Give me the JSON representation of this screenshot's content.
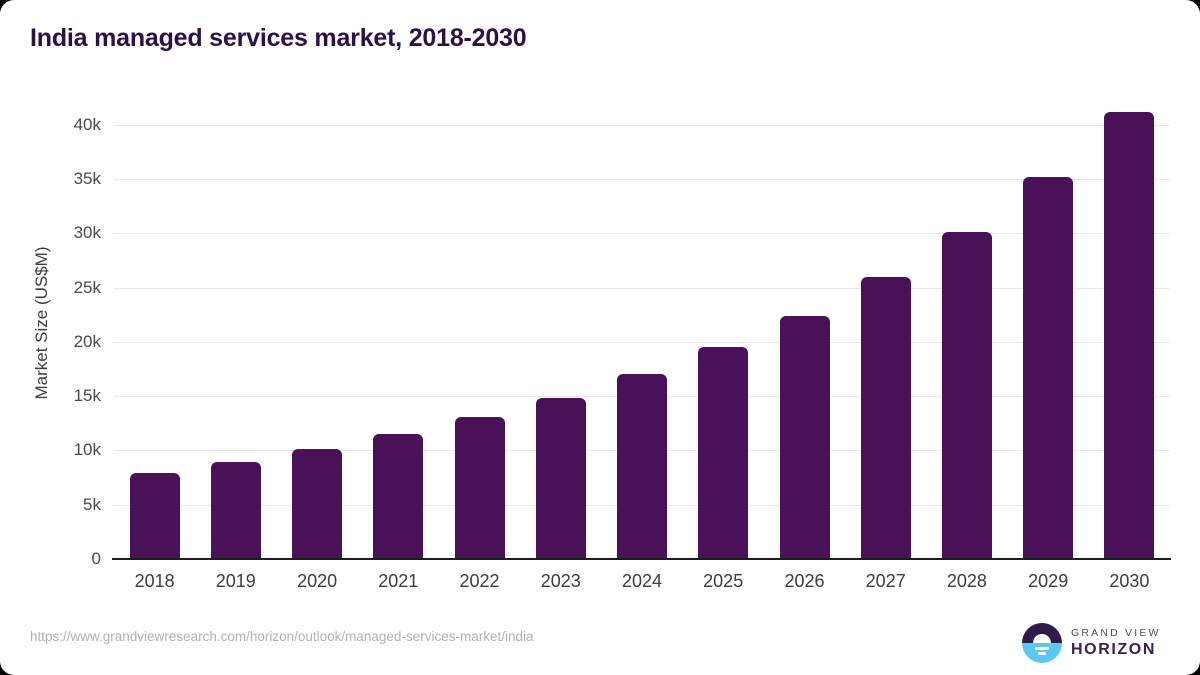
{
  "chart_data": {
    "type": "bar",
    "title": "India managed services market, 2018-2030",
    "xlabel": "",
    "ylabel": "Market Size (US$M)",
    "categories": [
      "2018",
      "2019",
      "2020",
      "2021",
      "2022",
      "2023",
      "2024",
      "2025",
      "2026",
      "2027",
      "2028",
      "2029",
      "2030"
    ],
    "values": [
      7900,
      8900,
      10100,
      11550,
      13100,
      14800,
      17000,
      19500,
      22400,
      25950,
      30100,
      35150,
      41200
    ],
    "ylim": [
      0,
      43000
    ],
    "ytick_step": 5000,
    "ytick_labels": [
      "0",
      "5k",
      "10k",
      "15k",
      "20k",
      "25k",
      "30k",
      "35k",
      "40k"
    ],
    "grid": "horizontal",
    "legend_position": "none",
    "bar_color": "#481158"
  },
  "colors": {
    "title": "#2d1046",
    "bar": "#481158",
    "gridline": "#e8e8e8",
    "axis_line": "#1c1c1c",
    "logo_purple": "#2e1b47",
    "logo_blue": "#5ac8f0"
  },
  "footer": {
    "source_url": "https://www.grandviewresearch.com/horizon/outlook/managed-services-market/india",
    "logo": {
      "top": "GRAND VIEW",
      "bottom": "HORIZON"
    }
  }
}
